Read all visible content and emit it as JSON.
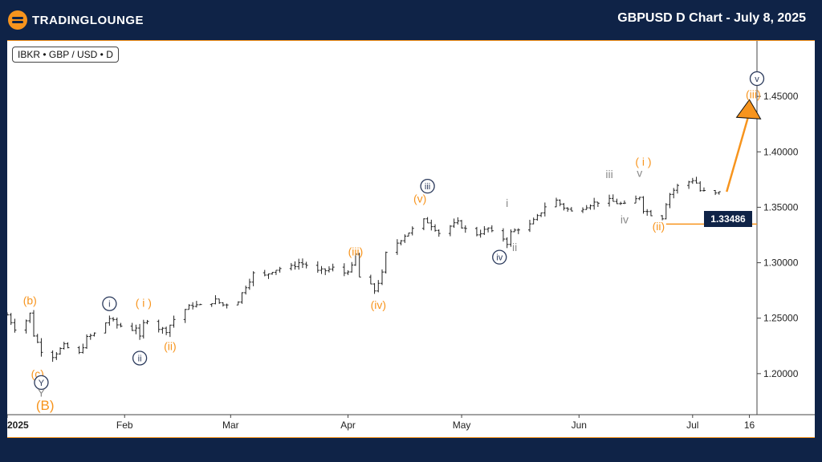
{
  "header": {
    "brand": "TRADINGLOUNGE",
    "title": "GBPUSD D Chart - July 8, 2025"
  },
  "symbol_badge": "IBKR • GBP / USD • D",
  "price_tag": "1.33486",
  "colors": {
    "background": "#0f2347",
    "orange": "#f7941d",
    "navy": "#2b3a5c",
    "gray": "#8a8a8a",
    "candle": "#222222"
  },
  "chart_data": {
    "type": "candlestick",
    "instrument": "GBPUSD",
    "timeframe": "D",
    "y_ticks": [
      1.2,
      1.25,
      1.3,
      1.35,
      1.4,
      1.45
    ],
    "y_tick_labels": [
      "1.20000",
      "1.25000",
      "1.30000",
      "1.35000",
      "1.40000",
      "1.45000"
    ],
    "ylim": [
      1.163,
      1.5
    ],
    "x_tick_labels": [
      {
        "label": "2025",
        "date": "2025-01-01"
      },
      {
        "label": "Feb",
        "date": "2025-02-01"
      },
      {
        "label": "Mar",
        "date": "2025-03-01"
      },
      {
        "label": "Apr",
        "date": "2025-04-01"
      },
      {
        "label": "May",
        "date": "2025-05-01"
      },
      {
        "label": "Jun",
        "date": "2025-06-01"
      },
      {
        "label": "Jul",
        "date": "2025-07-01"
      },
      {
        "label": "16",
        "date": "2025-07-16"
      }
    ],
    "xlim": [
      "2025-01-01",
      "2025-07-18"
    ],
    "close_path": [
      [
        "2025-01-01",
        1.253
      ],
      [
        "2025-01-03",
        1.241
      ],
      [
        "2025-01-06",
        1.248
      ],
      [
        "2025-01-07",
        1.254
      ],
      [
        "2025-01-08",
        1.235
      ],
      [
        "2025-01-10",
        1.221
      ],
      [
        "2025-01-13",
        1.216
      ],
      [
        "2025-01-14",
        1.219
      ],
      [
        "2025-01-16",
        1.225
      ],
      [
        "2025-01-20",
        1.218
      ],
      [
        "2025-01-22",
        1.232
      ],
      [
        "2025-01-24",
        1.236
      ],
      [
        "2025-01-27",
        1.246
      ],
      [
        "2025-01-28",
        1.25
      ],
      [
        "2025-01-30",
        1.244
      ],
      [
        "2025-02-03",
        1.24
      ],
      [
        "2025-02-04",
        1.242
      ],
      [
        "2025-02-05",
        1.232
      ],
      [
        "2025-02-06",
        1.245
      ],
      [
        "2025-02-07",
        1.249
      ],
      [
        "2025-02-10",
        1.241
      ],
      [
        "2025-02-12",
        1.239
      ],
      [
        "2025-02-14",
        1.249
      ],
      [
        "2025-02-17",
        1.258
      ],
      [
        "2025-02-19",
        1.262
      ],
      [
        "2025-02-21",
        1.261
      ],
      [
        "2025-02-25",
        1.266
      ],
      [
        "2025-02-27",
        1.262
      ],
      [
        "2025-03-03",
        1.266
      ],
      [
        "2025-03-05",
        1.279
      ],
      [
        "2025-03-07",
        1.29
      ],
      [
        "2025-03-10",
        1.288
      ],
      [
        "2025-03-12",
        1.293
      ],
      [
        "2025-03-14",
        1.295
      ],
      [
        "2025-03-17",
        1.296
      ],
      [
        "2025-03-19",
        1.3
      ],
      [
        "2025-03-21",
        1.298
      ],
      [
        "2025-03-24",
        1.292
      ],
      [
        "2025-03-26",
        1.293
      ],
      [
        "2025-03-28",
        1.295
      ],
      [
        "2025-03-31",
        1.291
      ],
      [
        "2025-04-02",
        1.296
      ],
      [
        "2025-04-03",
        1.307
      ],
      [
        "2025-04-04",
        1.287
      ],
      [
        "2025-04-07",
        1.279
      ],
      [
        "2025-04-08",
        1.275
      ],
      [
        "2025-04-10",
        1.29
      ],
      [
        "2025-04-11",
        1.308
      ],
      [
        "2025-04-14",
        1.318
      ],
      [
        "2025-04-16",
        1.325
      ],
      [
        "2025-04-18",
        1.33
      ],
      [
        "2025-04-21",
        1.338
      ],
      [
        "2025-04-22",
        1.337
      ],
      [
        "2025-04-24",
        1.331
      ],
      [
        "2025-04-25",
        1.327
      ],
      [
        "2025-04-28",
        1.333
      ],
      [
        "2025-04-30",
        1.336
      ],
      [
        "2025-05-02",
        1.33
      ],
      [
        "2025-05-05",
        1.326
      ],
      [
        "2025-05-07",
        1.329
      ],
      [
        "2025-05-08",
        1.331
      ],
      [
        "2025-05-09",
        1.327
      ],
      [
        "2025-05-12",
        1.322
      ],
      [
        "2025-05-13",
        1.318
      ],
      [
        "2025-05-14",
        1.327
      ],
      [
        "2025-05-16",
        1.331
      ],
      [
        "2025-05-19",
        1.334
      ],
      [
        "2025-05-21",
        1.341
      ],
      [
        "2025-05-23",
        1.351
      ],
      [
        "2025-05-26",
        1.356
      ],
      [
        "2025-05-28",
        1.35
      ],
      [
        "2025-05-30",
        1.346
      ],
      [
        "2025-06-02",
        1.35
      ],
      [
        "2025-06-04",
        1.353
      ],
      [
        "2025-06-06",
        1.355
      ],
      [
        "2025-06-09",
        1.356
      ],
      [
        "2025-06-11",
        1.354
      ],
      [
        "2025-06-13",
        1.352
      ],
      [
        "2025-06-16",
        1.357
      ],
      [
        "2025-06-17",
        1.36
      ],
      [
        "2025-06-18",
        1.348
      ],
      [
        "2025-06-20",
        1.344
      ],
      [
        "2025-06-23",
        1.341
      ],
      [
        "2025-06-24",
        1.354
      ],
      [
        "2025-06-25",
        1.362
      ],
      [
        "2025-06-27",
        1.369
      ],
      [
        "2025-06-30",
        1.373
      ],
      [
        "2025-07-01",
        1.375
      ],
      [
        "2025-07-02",
        1.372
      ],
      [
        "2025-07-03",
        1.365
      ],
      [
        "2025-07-04",
        1.364
      ],
      [
        "2025-07-07",
        1.362
      ],
      [
        "2025-07-08",
        1.363
      ]
    ],
    "horizontal_lines": [
      {
        "value": 1.33486,
        "from": "2025-06-24"
      }
    ],
    "projection_arrow": {
      "from": [
        "2025-07-10",
        1.364
      ],
      "to": [
        "2025-07-16",
        1.447
      ]
    },
    "wave_labels": [
      {
        "text": "(b)",
        "date": "2025-01-07",
        "value": 1.266,
        "color": "orange",
        "style": "plain"
      },
      {
        "text": "(c)",
        "date": "2025-01-09",
        "value": 1.2,
        "color": "orange",
        "style": "plain"
      },
      {
        "text": "Y",
        "date": "2025-01-10",
        "value": 1.192,
        "color": "navy",
        "style": "circle"
      },
      {
        "text": "Y",
        "date": "2025-01-10",
        "value": 1.183,
        "color": "gray",
        "style": "plain"
      },
      {
        "text": "(B)",
        "date": "2025-01-11",
        "value": 1.171,
        "color": "orange",
        "style": "plain-large"
      },
      {
        "text": "i",
        "date": "2025-01-28",
        "value": 1.263,
        "color": "navy",
        "style": "circle"
      },
      {
        "text": "ii",
        "date": "2025-02-05",
        "value": 1.214,
        "color": "navy",
        "style": "circle"
      },
      {
        "text": "( i )",
        "date": "2025-02-06",
        "value": 1.264,
        "color": "orange",
        "style": "plain"
      },
      {
        "text": "(ii)",
        "date": "2025-02-13",
        "value": 1.225,
        "color": "orange",
        "style": "plain"
      },
      {
        "text": "(iii)",
        "date": "2025-04-03",
        "value": 1.31,
        "color": "orange",
        "style": "plain"
      },
      {
        "text": "(iv)",
        "date": "2025-04-09",
        "value": 1.262,
        "color": "orange",
        "style": "plain"
      },
      {
        "text": "(v)",
        "date": "2025-04-20",
        "value": 1.358,
        "color": "orange",
        "style": "plain"
      },
      {
        "text": "iii",
        "date": "2025-04-22",
        "value": 1.369,
        "color": "navy",
        "style": "circle"
      },
      {
        "text": "i",
        "date": "2025-05-13",
        "value": 1.354,
        "color": "gray",
        "style": "plain"
      },
      {
        "text": "ii",
        "date": "2025-05-15",
        "value": 1.314,
        "color": "gray",
        "style": "plain"
      },
      {
        "text": "iv",
        "date": "2025-05-11",
        "value": 1.305,
        "color": "navy",
        "style": "circle"
      },
      {
        "text": "iii",
        "date": "2025-06-09",
        "value": 1.38,
        "color": "gray",
        "style": "plain"
      },
      {
        "text": "v",
        "date": "2025-06-17",
        "value": 1.381,
        "color": "gray",
        "style": "plain"
      },
      {
        "text": "( i )",
        "date": "2025-06-18",
        "value": 1.391,
        "color": "orange",
        "style": "plain"
      },
      {
        "text": "iv",
        "date": "2025-06-13",
        "value": 1.339,
        "color": "gray",
        "style": "plain"
      },
      {
        "text": "(ii)",
        "date": "2025-06-22",
        "value": 1.333,
        "color": "orange",
        "style": "plain"
      },
      {
        "text": "v",
        "date": "2025-07-18",
        "value": 1.466,
        "color": "navy",
        "style": "circle"
      },
      {
        "text": "(iii)",
        "date": "2025-07-17",
        "value": 1.452,
        "color": "orange",
        "style": "plain"
      }
    ]
  }
}
